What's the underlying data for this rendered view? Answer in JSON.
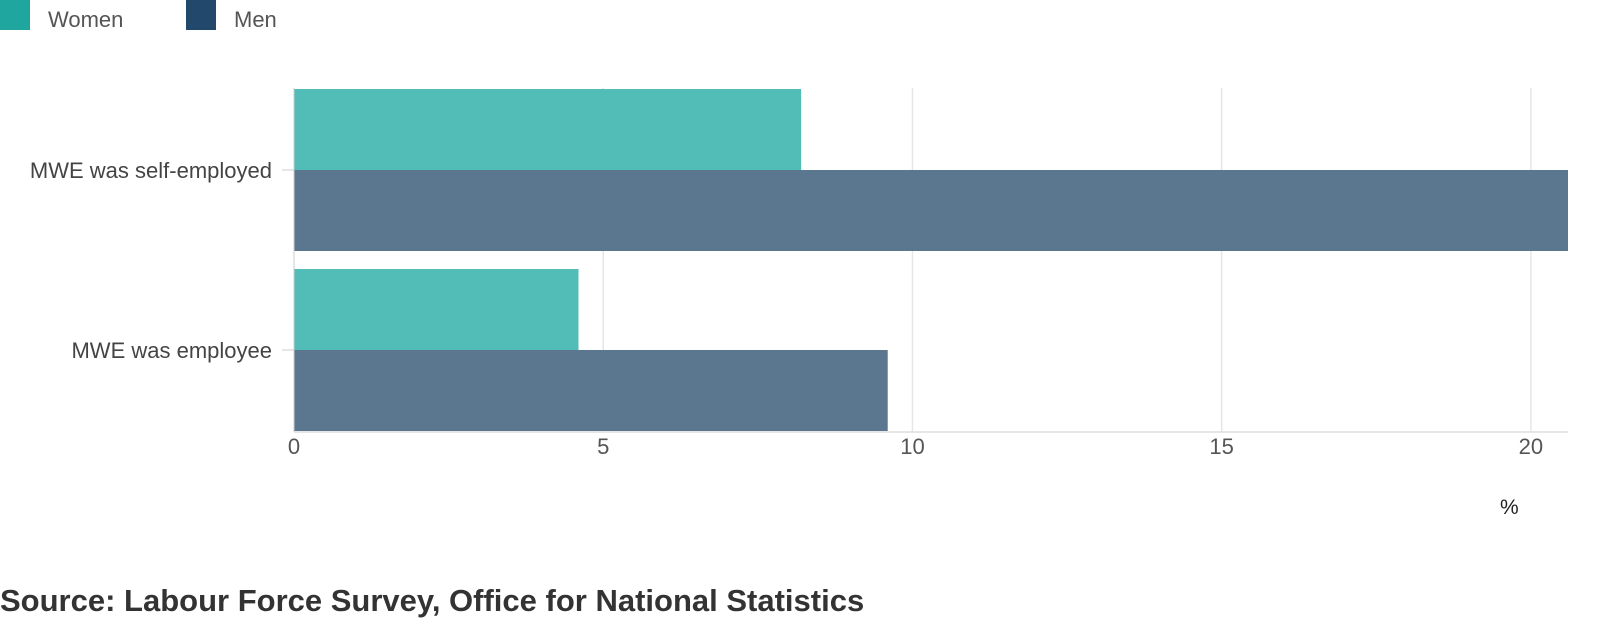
{
  "legend": {
    "items": [
      {
        "label": "Women",
        "color": "#1ea69f"
      },
      {
        "label": "Men",
        "color": "#22486b"
      }
    ]
  },
  "chart_data": {
    "type": "bar",
    "orientation": "horizontal",
    "categories": [
      "MWE was self-employed",
      "MWE was employee"
    ],
    "series": [
      {
        "name": "Women",
        "values": [
          8.2,
          4.6
        ],
        "color": "#52bcb7"
      },
      {
        "name": "Men",
        "values": [
          20.6,
          9.6
        ],
        "color": "#5b778f"
      }
    ],
    "x_ticks": [
      0,
      5,
      10,
      15,
      20
    ],
    "xlim": [
      0,
      20.6
    ],
    "xlabel": "%",
    "grid": true,
    "legend_position": "top-left"
  },
  "source": "Source: Labour Force Survey, Office for National Statistics"
}
